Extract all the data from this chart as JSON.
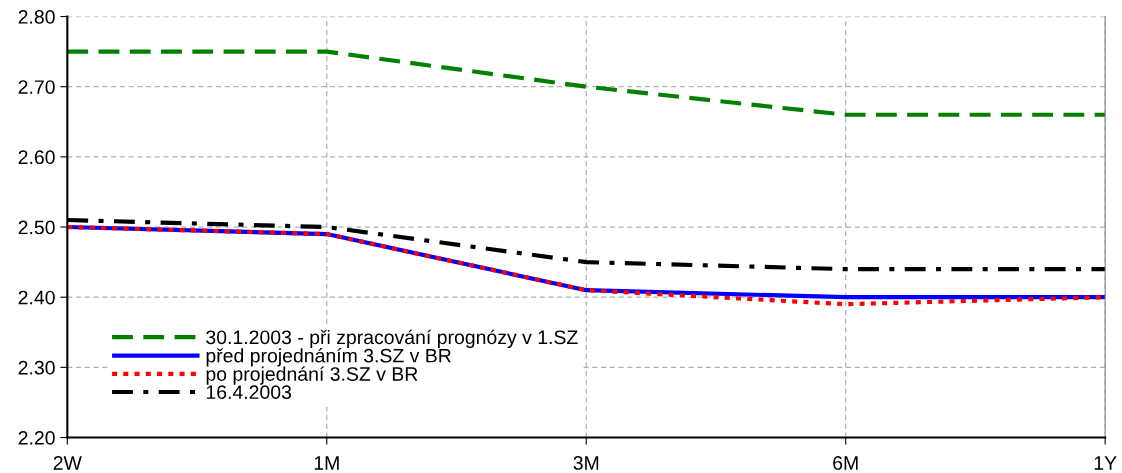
{
  "chart_data": {
    "type": "line",
    "categories": [
      "2W",
      "1M",
      "3M",
      "6M",
      "1Y"
    ],
    "series": [
      {
        "name": "30.1.2003 - při zpracování prognózy v 1.SZ",
        "color": "#008000",
        "line_style": "dashed",
        "values": [
          2.75,
          2.75,
          2.7,
          2.66,
          2.66
        ]
      },
      {
        "name": "před projednáním 3.SZ v BR",
        "color": "#0000ff",
        "line_style": "solid",
        "values": [
          2.5,
          2.49,
          2.41,
          2.4,
          2.4
        ]
      },
      {
        "name": "po projednání 3.SZ v BR",
        "color": "#ff0000",
        "line_style": "dotted",
        "values": [
          2.5,
          2.49,
          2.41,
          2.39,
          2.4
        ]
      },
      {
        "name": "16.4.2003",
        "color": "#000000",
        "line_style": "dashdot",
        "values": [
          2.51,
          2.5,
          2.45,
          2.44,
          2.44
        ]
      }
    ],
    "ylim": [
      2.2,
      2.8
    ],
    "yticks": [
      {
        "value": 2.2,
        "label": "2.20"
      },
      {
        "value": 2.3,
        "label": "2.30"
      },
      {
        "value": 2.4,
        "label": "2.40"
      },
      {
        "value": 2.5,
        "label": "2.50"
      },
      {
        "value": 2.6,
        "label": "2.60"
      },
      {
        "value": 2.7,
        "label": "2.70"
      },
      {
        "value": 2.8,
        "label": "2.80"
      }
    ],
    "grid": true,
    "legend": "bottom left",
    "marker": "none"
  }
}
